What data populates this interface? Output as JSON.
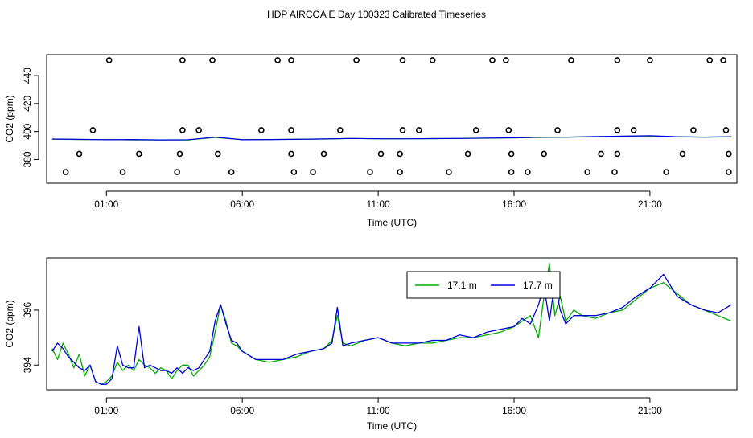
{
  "page_title": "HDP AIRCOA E  Day 100323  Calibrated Timeseries",
  "chart_data": [
    {
      "type": "scatter",
      "xlabel": "Time (UTC)",
      "ylabel": "CO2 (ppm)",
      "xticks": [
        "01:00",
        "06:00",
        "11:00",
        "16:00",
        "21:00"
      ],
      "xtick_hours": [
        1,
        6,
        11,
        16,
        21
      ],
      "yticks": [
        380,
        400,
        420,
        440
      ],
      "xlim": [
        -1.2,
        24.2
      ],
      "ylim": [
        363,
        455
      ],
      "grid": false,
      "series": [
        {
          "color": "#00aa00",
          "marker": "line",
          "x": [
            -1,
            0,
            1,
            2,
            3,
            4,
            5,
            6,
            7,
            8,
            9,
            10,
            11,
            12,
            13,
            14,
            15,
            16,
            17,
            18,
            19,
            20,
            21,
            22,
            23,
            24
          ],
          "y": [
            394.5,
            394.3,
            394.2,
            394,
            394,
            394,
            395.8,
            394.2,
            394.2,
            394.5,
            394.6,
            395,
            394.8,
            394.8,
            394.9,
            395,
            395.2,
            395.5,
            395.8,
            396,
            396.3,
            396.6,
            396.8,
            396.2,
            396,
            396.2
          ]
        },
        {
          "color": "#0000dd",
          "marker": "line",
          "x": [
            -1,
            0,
            1,
            2,
            3,
            4,
            5,
            6,
            7,
            8,
            9,
            10,
            11,
            12,
            13,
            14,
            15,
            16,
            17,
            18,
            19,
            20,
            21,
            22,
            23,
            24
          ],
          "y": [
            394.6,
            394.4,
            394.1,
            394.3,
            394,
            394.1,
            396,
            394.1,
            394.3,
            394.4,
            394.7,
            395,
            394.8,
            394.8,
            394.9,
            395,
            395.3,
            395.5,
            396,
            396,
            396.4,
            396.7,
            397,
            396.3,
            396,
            396.3
          ]
        },
        {
          "color": "#000000",
          "marker": "open-circle",
          "x": [
            1.1,
            3.8,
            4.9,
            7.3,
            7.8,
            10.2,
            11.9,
            13.0,
            15.2,
            15.7,
            18.1,
            19.8,
            21.0,
            23.2,
            23.7
          ],
          "y": [
            451,
            451,
            451,
            451,
            451,
            451,
            451,
            451,
            451,
            451,
            451,
            451,
            451,
            451,
            451
          ]
        },
        {
          "color": "#000000",
          "marker": "open-circle",
          "x": [
            0.5,
            3.8,
            4.4,
            6.7,
            7.8,
            9.6,
            11.9,
            12.5,
            14.6,
            15.8,
            17.6,
            19.8,
            20.4,
            22.6,
            23.8
          ],
          "y": [
            401,
            401,
            401,
            401,
            401,
            401,
            401,
            401,
            401,
            401,
            401,
            401,
            401,
            401,
            401
          ]
        },
        {
          "color": "#000000",
          "marker": "open-circle",
          "x": [
            0,
            2.2,
            3.7,
            5.1,
            7.8,
            9.0,
            11.1,
            11.8,
            14.3,
            15.9,
            17.1,
            19.2,
            19.8,
            22.2,
            23.9
          ],
          "y": [
            384,
            384,
            384,
            384,
            384,
            384,
            384,
            384,
            384,
            384,
            384,
            384,
            384,
            384,
            384
          ]
        },
        {
          "color": "#000000",
          "marker": "open-circle",
          "x": [
            -0.5,
            1.6,
            3.6,
            5.6,
            7.9,
            8.6,
            10.7,
            11.8,
            13.6,
            15.9,
            16.5,
            18.7,
            19.7,
            21.6,
            23.9
          ],
          "y": [
            371,
            371,
            371,
            371,
            371,
            371,
            371,
            371,
            371,
            371,
            371,
            371,
            371,
            371,
            371
          ]
        }
      ]
    },
    {
      "type": "line",
      "xlabel": "Time (UTC)",
      "ylabel": "CO2 (ppm)",
      "xticks": [
        "01:00",
        "06:00",
        "11:00",
        "16:00",
        "21:00"
      ],
      "xtick_hours": [
        1,
        6,
        11,
        16,
        21
      ],
      "yticks": [
        394,
        396
      ],
      "xlim": [
        -1.2,
        24.2
      ],
      "ylim": [
        393.1,
        397.9
      ],
      "grid": false,
      "legend": "top-center",
      "series": [
        {
          "name": "17.1 m",
          "color": "#00aa00",
          "x": [
            -1,
            -0.8,
            -0.6,
            -0.4,
            -0.2,
            0,
            0.2,
            0.4,
            0.6,
            0.8,
            1,
            1.2,
            1.4,
            1.6,
            1.8,
            2,
            2.2,
            2.4,
            2.6,
            2.8,
            3,
            3.2,
            3.4,
            3.6,
            3.8,
            4,
            4.2,
            4.4,
            4.6,
            4.8,
            5,
            5.2,
            5.4,
            5.6,
            5.8,
            6,
            6.5,
            7,
            7.5,
            8,
            8.5,
            9,
            9.3,
            9.5,
            9.7,
            10,
            10.5,
            11,
            11.5,
            12,
            12.5,
            13,
            13.5,
            14,
            14.5,
            15,
            15.5,
            16,
            16.3,
            16.6,
            16.9,
            17.1,
            17.3,
            17.5,
            17.7,
            17.9,
            18.2,
            18.5,
            19,
            19.5,
            20,
            20.5,
            21,
            21.5,
            22,
            22.5,
            23,
            23.5,
            24
          ],
          "y": [
            394.6,
            394.2,
            394.8,
            394.4,
            393.9,
            394.4,
            393.6,
            394.0,
            393.4,
            393.3,
            393.4,
            393.6,
            394.1,
            393.8,
            394.0,
            393.8,
            394.2,
            394.0,
            393.9,
            393.7,
            393.9,
            393.8,
            393.5,
            393.8,
            394.0,
            394.0,
            393.6,
            393.8,
            394.0,
            394.3,
            395.2,
            396.2,
            395.6,
            394.8,
            394.7,
            394.5,
            394.2,
            394.1,
            394.2,
            394.3,
            394.5,
            394.6,
            394.9,
            395.8,
            394.8,
            394.7,
            394.9,
            395.0,
            394.8,
            394.7,
            394.8,
            394.8,
            394.9,
            395.0,
            395.0,
            395.1,
            395.2,
            395.4,
            395.6,
            395.8,
            395.0,
            396.5,
            397.7,
            395.8,
            396.5,
            395.6,
            396.0,
            395.8,
            395.7,
            395.9,
            396.0,
            396.4,
            396.8,
            397.0,
            396.6,
            396.2,
            396.0,
            395.8,
            395.6
          ]
        },
        {
          "name": "17.7 m",
          "color": "#0000dd",
          "x": [
            -1,
            -0.8,
            -0.6,
            -0.4,
            -0.2,
            0,
            0.2,
            0.4,
            0.6,
            0.8,
            1,
            1.2,
            1.4,
            1.6,
            1.8,
            2,
            2.2,
            2.4,
            2.6,
            2.8,
            3,
            3.2,
            3.4,
            3.6,
            3.8,
            4,
            4.2,
            4.4,
            4.6,
            4.8,
            5,
            5.2,
            5.4,
            5.6,
            5.8,
            6,
            6.5,
            7,
            7.5,
            8,
            8.5,
            9,
            9.3,
            9.5,
            9.7,
            10,
            10.5,
            11,
            11.5,
            12,
            12.5,
            13,
            13.5,
            14,
            14.5,
            15,
            15.5,
            16,
            16.3,
            16.6,
            16.9,
            17.1,
            17.3,
            17.5,
            17.7,
            17.9,
            18.2,
            18.5,
            19,
            19.5,
            20,
            20.5,
            21,
            21.5,
            22,
            22.5,
            23,
            23.5,
            24
          ],
          "y": [
            394.5,
            394.8,
            394.6,
            394.3,
            394.1,
            393.9,
            393.8,
            394.0,
            393.4,
            393.3,
            393.3,
            393.5,
            394.7,
            394.0,
            393.9,
            393.9,
            395.4,
            393.9,
            394.0,
            393.9,
            393.8,
            393.8,
            393.7,
            393.9,
            393.7,
            393.9,
            393.8,
            393.9,
            394.2,
            394.5,
            395.6,
            396.2,
            395.5,
            394.9,
            394.8,
            394.5,
            394.2,
            394.2,
            394.2,
            394.4,
            394.5,
            394.6,
            394.8,
            396.1,
            394.7,
            394.8,
            394.9,
            395.0,
            394.8,
            394.8,
            394.8,
            394.9,
            394.9,
            395.1,
            395.0,
            395.2,
            395.3,
            395.4,
            395.7,
            395.5,
            396.2,
            396.9,
            395.6,
            397.0,
            396.0,
            395.5,
            395.8,
            395.8,
            395.8,
            395.9,
            396.1,
            396.5,
            396.8,
            397.3,
            396.5,
            396.2,
            396.0,
            395.9,
            396.2
          ]
        }
      ]
    }
  ]
}
